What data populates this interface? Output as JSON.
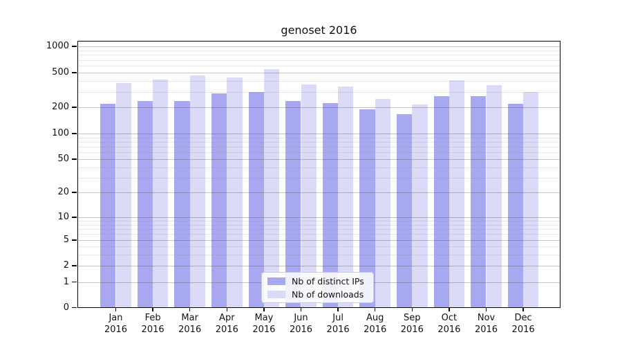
{
  "title": "genoset 2016",
  "legend": {
    "items": [
      {
        "label": "Nb of distinct IPs",
        "color": "#a8a8f0"
      },
      {
        "label": "Nb of downloads",
        "color": "#dbdbf7"
      }
    ]
  },
  "chart_data": {
    "type": "bar",
    "title": "genoset 2016",
    "categories": [
      "Jan 2016",
      "Feb 2016",
      "Mar 2016",
      "Apr 2016",
      "May 2016",
      "Jun 2016",
      "Jul 2016",
      "Aug 2016",
      "Sep 2016",
      "Oct 2016",
      "Nov 2016",
      "Dec 2016"
    ],
    "series": [
      {
        "name": "Nb of distinct IPs",
        "color": "#a8a8f0",
        "values": [
          220,
          238,
          235,
          290,
          300,
          235,
          225,
          190,
          168,
          270,
          268,
          220
        ]
      },
      {
        "name": "Nb of downloads",
        "color": "#dbdbf7",
        "values": [
          380,
          415,
          465,
          440,
          550,
          365,
          345,
          248,
          215,
          410,
          360,
          300
        ]
      }
    ],
    "xlabel": "",
    "ylabel": "",
    "y_axis": {
      "scale": "symlog",
      "ticks": [
        0,
        1,
        2,
        5,
        10,
        20,
        50,
        100,
        200,
        500,
        1000
      ],
      "range": [
        0,
        1150
      ]
    },
    "grid": {
      "axis": "y",
      "which": "both"
    },
    "legend_position": "lower center"
  },
  "colors": {
    "background": "#ffffff",
    "bar_distinct_ips": "#a8a8f0",
    "bar_downloads": "#dbdbf7",
    "grid_major": "#c8c8c8",
    "grid_minor": "#e8e8e8",
    "spine": "#000000",
    "text": "#111111"
  }
}
